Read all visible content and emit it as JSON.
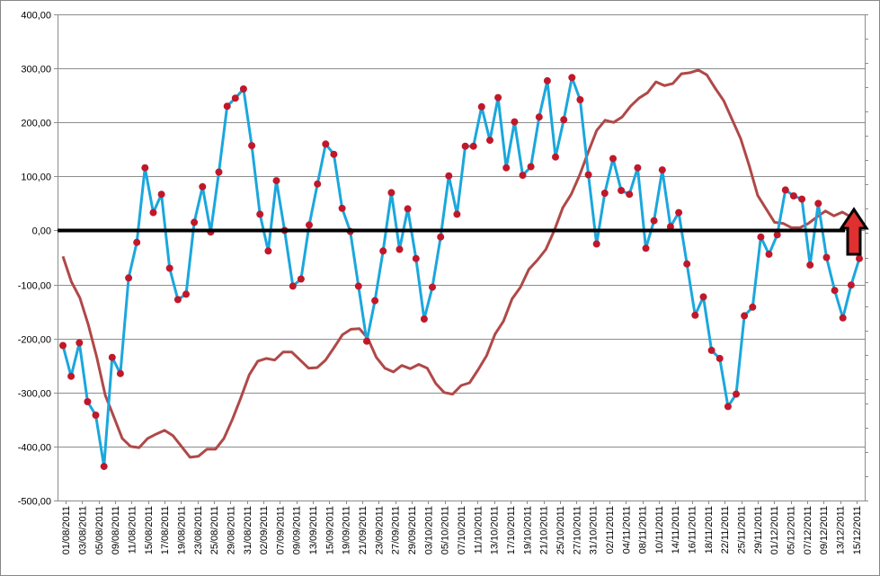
{
  "chart_data": {
    "type": "line",
    "title": "",
    "xlabel": "",
    "ylabel": "",
    "ylim": [
      -500,
      400
    ],
    "y_ticks": [
      "400,00",
      "300,00",
      "200,00",
      "100,00",
      "0,00",
      "-100,00",
      "-200,00",
      "-300,00",
      "-400,00",
      "-500,00"
    ],
    "y_tick_values": [
      400,
      300,
      200,
      100,
      0,
      -100,
      -200,
      -300,
      -400,
      -500
    ],
    "x_tick_labels": [
      "01/08/2011",
      "03/08/2011",
      "05/08/2011",
      "09/08/2011",
      "11/08/2011",
      "15/08/2011",
      "17/08/2011",
      "19/08/2011",
      "23/08/2011",
      "25/08/2011",
      "29/08/2011",
      "31/08/2011",
      "02/09/2011",
      "07/09/2011",
      "09/09/2011",
      "13/09/2011",
      "15/09/2011",
      "19/09/2011",
      "21/09/2011",
      "23/09/2011",
      "27/09/2011",
      "29/09/2011",
      "03/10/2011",
      "05/10/2011",
      "07/10/2011",
      "11/10/2011",
      "13/10/2011",
      "17/10/2011",
      "19/10/2011",
      "21/10/2011",
      "25/10/2011",
      "27/10/2011",
      "31/10/2011",
      "02/11/2011",
      "04/11/2011",
      "08/11/2011",
      "10/11/2011",
      "14/11/2011",
      "16/11/2011",
      "18/11/2011",
      "22/11/2011",
      "25/11/2011",
      "29/11/2011",
      "01/12/2011",
      "05/12/2011",
      "07/12/2011",
      "09/12/2011",
      "13/12/2011",
      "15/12/2011"
    ],
    "grid": true,
    "legend": "none",
    "zero_line_color": "#000000",
    "arrow_color": "#e03030",
    "series": [
      {
        "color": "#1aa7dd",
        "marker_color": "#c0182a",
        "values": [
          -213,
          -270,
          -208,
          -317,
          -342,
          -437,
          -235,
          -265,
          -88,
          -22,
          116,
          33,
          67,
          -70,
          -128,
          -118,
          15,
          81,
          -3,
          108,
          230,
          245,
          262,
          157,
          30,
          -38,
          92,
          0,
          -103,
          -90,
          10,
          86,
          160,
          141,
          41,
          -2,
          -103,
          -205,
          -130,
          -38,
          70,
          -35,
          40,
          -52,
          -164,
          -105,
          -12,
          101,
          30,
          156,
          156,
          229,
          167,
          246,
          116,
          201,
          102,
          118,
          210,
          277,
          136,
          205,
          283,
          242,
          103,
          -25,
          69,
          133,
          74,
          67,
          116,
          -33,
          18,
          112,
          7,
          33,
          -62,
          -157,
          -123,
          -222,
          -237,
          -326,
          -303,
          -158,
          -142,
          -12,
          -44,
          -8,
          75,
          64,
          58,
          -64,
          50,
          -50,
          -111,
          -162,
          -101,
          -52
        ]
      },
      {
        "color": "#b04848",
        "values": [
          -48,
          -95,
          -125,
          -175,
          -235,
          -305,
          -345,
          -385,
          -400,
          -402,
          -385,
          -377,
          -370,
          -380,
          -400,
          -420,
          -418,
          -405,
          -405,
          -385,
          -350,
          -310,
          -267,
          -242,
          -237,
          -240,
          -225,
          -225,
          -240,
          -255,
          -254,
          -240,
          -217,
          -193,
          -183,
          -182,
          -200,
          -235,
          -255,
          -262,
          -250,
          -256,
          -248,
          -255,
          -283,
          -300,
          -303,
          -287,
          -282,
          -258,
          -232,
          -192,
          -168,
          -127,
          -105,
          -72,
          -55,
          -35,
          0,
          42,
          67,
          103,
          145,
          185,
          204,
          200,
          210,
          230,
          245,
          255,
          275,
          268,
          272,
          290,
          292,
          297,
          288,
          263,
          240,
          205,
          170,
          120,
          65,
          40,
          15,
          13,
          5,
          5,
          13,
          25,
          36,
          27,
          34,
          25,
          5
        ]
      }
    ]
  }
}
